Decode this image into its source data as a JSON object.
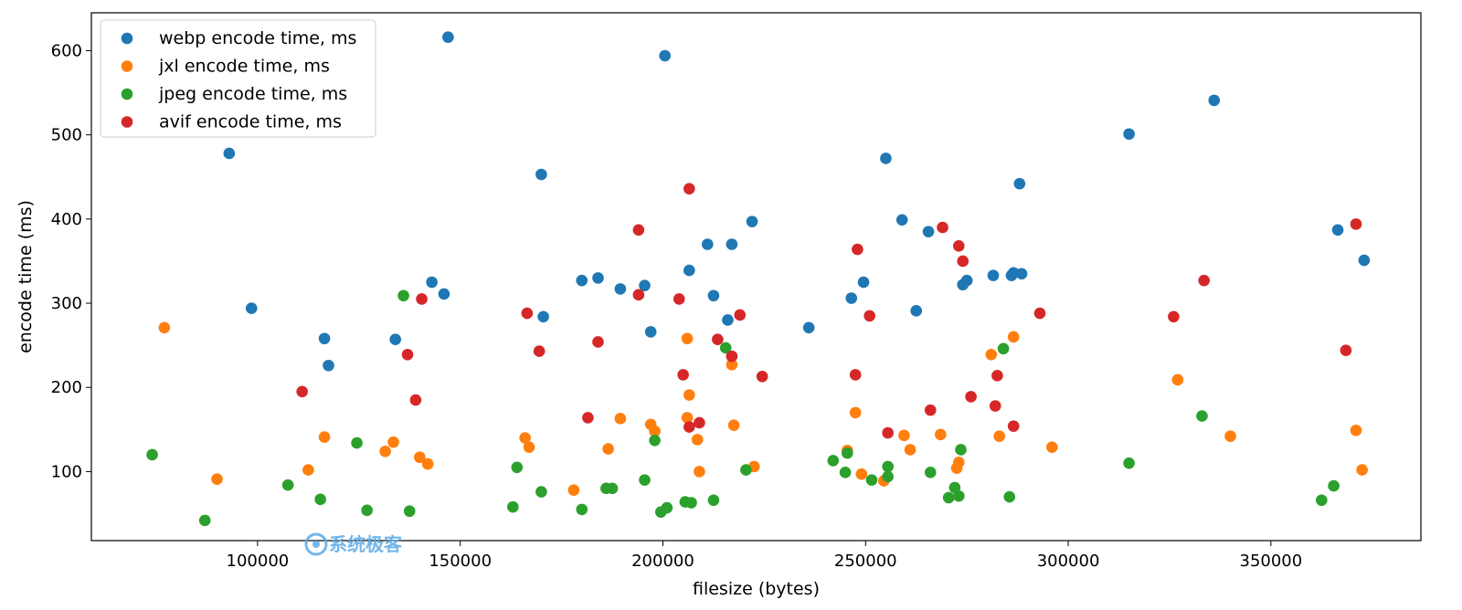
{
  "chart_data": {
    "type": "scatter",
    "xlabel": "filesize (bytes)",
    "ylabel": "encode time (ms)",
    "xlim": [
      59000,
      387000
    ],
    "ylim": [
      18,
      645
    ],
    "xticks": [
      100000,
      150000,
      200000,
      250000,
      300000,
      350000
    ],
    "xtick_labels": [
      "100000",
      "150000",
      "200000",
      "250000",
      "300000",
      "350000"
    ],
    "yticks": [
      100,
      200,
      300,
      400,
      500,
      600
    ],
    "ytick_labels": [
      "100",
      "200",
      "300",
      "400",
      "500",
      "600"
    ],
    "legend_position": "upper-left",
    "watermark": "系统极客",
    "series": [
      {
        "name": "webp encode time, ms",
        "color": "#1f77b4",
        "points": [
          [
            93000,
            478
          ],
          [
            98500,
            294
          ],
          [
            116500,
            258
          ],
          [
            117500,
            226
          ],
          [
            134000,
            257
          ],
          [
            143000,
            325
          ],
          [
            146000,
            311
          ],
          [
            147000,
            616
          ],
          [
            170000,
            453
          ],
          [
            170500,
            284
          ],
          [
            180000,
            327
          ],
          [
            184000,
            330
          ],
          [
            189500,
            317
          ],
          [
            195500,
            321
          ],
          [
            197000,
            266
          ],
          [
            200500,
            594
          ],
          [
            206500,
            339
          ],
          [
            211000,
            370
          ],
          [
            212500,
            309
          ],
          [
            216000,
            280
          ],
          [
            217000,
            370
          ],
          [
            222000,
            397
          ],
          [
            236000,
            271
          ],
          [
            246500,
            306
          ],
          [
            249500,
            325
          ],
          [
            255000,
            472
          ],
          [
            259000,
            399
          ],
          [
            262500,
            291
          ],
          [
            265500,
            385
          ],
          [
            274000,
            322
          ],
          [
            275000,
            327
          ],
          [
            281500,
            333
          ],
          [
            286000,
            333
          ],
          [
            286500,
            336
          ],
          [
            288500,
            335
          ],
          [
            288000,
            442
          ],
          [
            315000,
            501
          ],
          [
            336000,
            541
          ],
          [
            366500,
            387
          ],
          [
            373000,
            351
          ]
        ]
      },
      {
        "name": "jxl encode time, ms",
        "color": "#ff7f0e",
        "points": [
          [
            77000,
            271
          ],
          [
            90000,
            91
          ],
          [
            112500,
            102
          ],
          [
            116500,
            141
          ],
          [
            131500,
            124
          ],
          [
            133500,
            135
          ],
          [
            140000,
            117
          ],
          [
            142000,
            109
          ],
          [
            166000,
            140
          ],
          [
            167000,
            129
          ],
          [
            178000,
            78
          ],
          [
            186500,
            127
          ],
          [
            189500,
            163
          ],
          [
            197000,
            156
          ],
          [
            198000,
            148
          ],
          [
            206000,
            258
          ],
          [
            206500,
            191
          ],
          [
            206000,
            164
          ],
          [
            208500,
            138
          ],
          [
            209000,
            100
          ],
          [
            217000,
            227
          ],
          [
            217500,
            155
          ],
          [
            222500,
            106
          ],
          [
            245500,
            125
          ],
          [
            247500,
            170
          ],
          [
            249000,
            97
          ],
          [
            254500,
            89
          ],
          [
            259500,
            143
          ],
          [
            261000,
            126
          ],
          [
            268500,
            144
          ],
          [
            272500,
            104
          ],
          [
            273000,
            111
          ],
          [
            281000,
            239
          ],
          [
            283000,
            142
          ],
          [
            286500,
            260
          ],
          [
            296000,
            129
          ],
          [
            327000,
            209
          ],
          [
            340000,
            142
          ],
          [
            371000,
            149
          ],
          [
            372500,
            102
          ]
        ]
      },
      {
        "name": "jpeg encode time, ms",
        "color": "#2ca02c",
        "points": [
          [
            74000,
            120
          ],
          [
            87000,
            42
          ],
          [
            107500,
            84
          ],
          [
            115500,
            67
          ],
          [
            124500,
            134
          ],
          [
            127000,
            54
          ],
          [
            136000,
            309
          ],
          [
            137500,
            53
          ],
          [
            163000,
            58
          ],
          [
            164000,
            105
          ],
          [
            170000,
            76
          ],
          [
            180000,
            55
          ],
          [
            186000,
            80
          ],
          [
            187500,
            80
          ],
          [
            195500,
            90
          ],
          [
            198000,
            137
          ],
          [
            199500,
            52
          ],
          [
            201000,
            57
          ],
          [
            205500,
            64
          ],
          [
            207000,
            63
          ],
          [
            212500,
            66
          ],
          [
            215500,
            247
          ],
          [
            220500,
            102
          ],
          [
            242000,
            113
          ],
          [
            245000,
            99
          ],
          [
            245500,
            122
          ],
          [
            251500,
            90
          ],
          [
            255500,
            94
          ],
          [
            255500,
            106
          ],
          [
            266000,
            99
          ],
          [
            270500,
            69
          ],
          [
            272000,
            81
          ],
          [
            273000,
            71
          ],
          [
            273500,
            126
          ],
          [
            284000,
            246
          ],
          [
            285500,
            70
          ],
          [
            315000,
            110
          ],
          [
            333000,
            166
          ],
          [
            362500,
            66
          ],
          [
            365500,
            83
          ]
        ]
      },
      {
        "name": "avif encode time, ms",
        "color": "#d62728",
        "points": [
          [
            111000,
            195
          ],
          [
            137000,
            239
          ],
          [
            139000,
            185
          ],
          [
            140500,
            305
          ],
          [
            166500,
            288
          ],
          [
            169500,
            243
          ],
          [
            181500,
            164
          ],
          [
            184000,
            254
          ],
          [
            194000,
            387
          ],
          [
            194000,
            310
          ],
          [
            204000,
            305
          ],
          [
            205000,
            215
          ],
          [
            206500,
            436
          ],
          [
            206500,
            153
          ],
          [
            209000,
            158
          ],
          [
            213500,
            257
          ],
          [
            217000,
            237
          ],
          [
            219000,
            286
          ],
          [
            224500,
            213
          ],
          [
            248000,
            364
          ],
          [
            247500,
            215
          ],
          [
            251000,
            285
          ],
          [
            255500,
            146
          ],
          [
            266000,
            173
          ],
          [
            269000,
            390
          ],
          [
            273000,
            368
          ],
          [
            274000,
            350
          ],
          [
            276000,
            189
          ],
          [
            282000,
            178
          ],
          [
            282500,
            214
          ],
          [
            286500,
            154
          ],
          [
            293000,
            288
          ],
          [
            326000,
            284
          ],
          [
            333500,
            327
          ],
          [
            368500,
            244
          ],
          [
            371000,
            394
          ]
        ]
      }
    ]
  }
}
